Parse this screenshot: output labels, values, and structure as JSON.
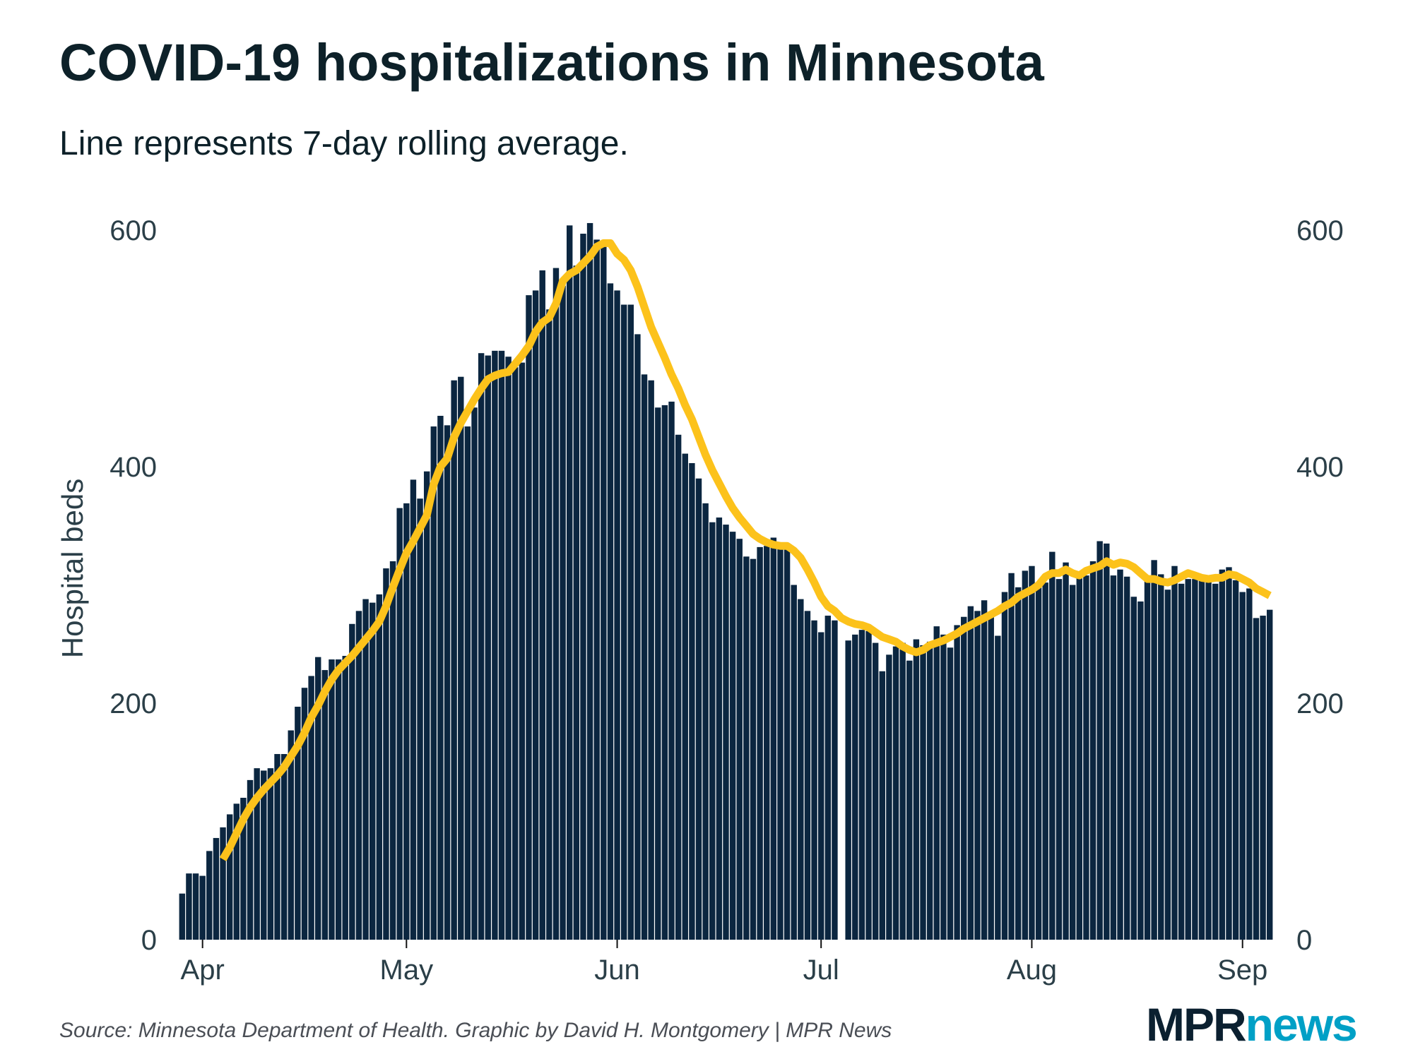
{
  "header": {
    "title": "COVID-19 hospitalizations in Minnesota",
    "subtitle": "Line represents 7-day rolling average."
  },
  "footer": {
    "source": "Source: Minnesota Department of Health. Graphic by David H. Montgomery | MPR News",
    "logo_part1": "MPR",
    "logo_part2": "news"
  },
  "colors": {
    "bars": "#0b2640",
    "line": "#fcc21b",
    "text": "#2b3f48",
    "logo_dark": "#0b2030",
    "logo_accent": "#00a0c6"
  },
  "chart_data": {
    "type": "bar",
    "title": "COVID-19 hospitalizations in Minnesota",
    "subtitle": "Line represents 7-day rolling average.",
    "xlabel": "",
    "ylabel": "Hospital beds",
    "ylim": [
      0,
      620
    ],
    "yticks": [
      0,
      200,
      400,
      600
    ],
    "y_axis_both_sides": true,
    "grid": false,
    "first_date": "Mar 29",
    "last_date": "Sep 6",
    "xticks": [
      {
        "label": "Apr",
        "index": 3
      },
      {
        "label": "May",
        "index": 33
      },
      {
        "label": "Jun",
        "index": 64
      },
      {
        "label": "Jul",
        "index": 94
      },
      {
        "label": "Aug",
        "index": 125
      },
      {
        "label": "Sep",
        "index": 156
      }
    ],
    "series": [
      {
        "name": "Daily hospitalizations",
        "type": "bar",
        "values": [
          39,
          56,
          56,
          54,
          75,
          86,
          95,
          106,
          115,
          120,
          135,
          145,
          143,
          145,
          157,
          157,
          177,
          197,
          213,
          223,
          239,
          228,
          237,
          237,
          240,
          267,
          278,
          288,
          285,
          292,
          314,
          320,
          365,
          369,
          389,
          373,
          396,
          434,
          443,
          435,
          473,
          476,
          434,
          450,
          496,
          494,
          498,
          498,
          493,
          484,
          488,
          545,
          549,
          566,
          533,
          568,
          553,
          604,
          570,
          597,
          606,
          592,
          586,
          555,
          549,
          537,
          537,
          512,
          478,
          473,
          450,
          452,
          455,
          427,
          411,
          403,
          390,
          369,
          353,
          357,
          351,
          345,
          339,
          324,
          322,
          332,
          333,
          340,
          331,
          331,
          300,
          288,
          278,
          270,
          260,
          274,
          270,
          null,
          253,
          258,
          262,
          261,
          251,
          227,
          241,
          248,
          251,
          236,
          254,
          249,
          252,
          265,
          258,
          247,
          266,
          273,
          282,
          278,
          287,
          275,
          257,
          294,
          310,
          298,
          312,
          316,
          300,
          302,
          328,
          305,
          319,
          300,
          307,
          308,
          320,
          337,
          335,
          308,
          313,
          307,
          290,
          286,
          303,
          321,
          309,
          296,
          316,
          301,
          305,
          305,
          304,
          303,
          301,
          313,
          315,
          304,
          294,
          297,
          272,
          274,
          279
        ]
      },
      {
        "name": "7-day rolling average",
        "type": "line",
        "start_index": 6,
        "values": [
          68,
          78,
          90,
          102,
          112,
          120,
          127,
          133,
          139,
          146,
          155,
          164,
          175,
          188,
          198,
          210,
          220,
          228,
          234,
          240,
          247,
          254,
          261,
          269,
          282,
          298,
          313,
          327,
          337,
          348,
          359,
          385,
          400,
          407,
          425,
          437,
          447,
          457,
          466,
          474,
          477,
          479,
          480,
          487,
          494,
          502,
          514,
          522,
          526,
          538,
          557,
          563,
          566,
          572,
          578,
          586,
          589,
          589,
          580,
          575,
          566,
          552,
          535,
          518,
          505,
          492,
          478,
          466,
          452,
          440,
          425,
          410,
          397,
          386,
          375,
          365,
          357,
          350,
          343,
          339,
          336,
          334,
          333,
          333,
          329,
          323,
          313,
          302,
          290,
          282,
          278,
          272,
          269,
          267,
          266,
          264,
          260,
          256,
          254,
          252,
          248,
          245,
          243,
          245,
          249,
          251,
          253,
          256,
          259,
          263,
          266,
          269,
          272,
          275,
          278,
          282,
          285,
          290,
          293,
          296,
          300,
          307,
          310,
          310,
          313,
          310,
          308,
          312,
          314,
          316,
          320,
          317,
          319,
          318,
          315,
          310,
          305,
          305,
          303,
          302,
          304,
          307,
          310,
          308,
          306,
          305,
          306,
          306,
          309,
          308,
          305,
          302,
          297,
          294,
          291
        ]
      }
    ]
  }
}
